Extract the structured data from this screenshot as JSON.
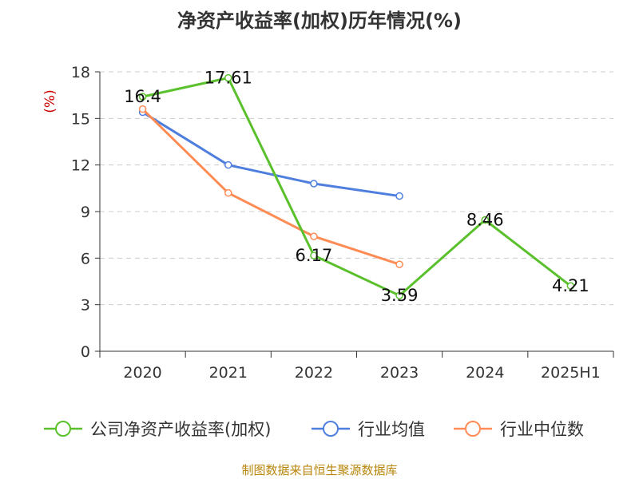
{
  "title": "净资产收益率(加权)历年情况(%)",
  "source": "制图数据来自恒生聚源数据库",
  "chart_data": {
    "type": "line",
    "title": "净资产收益率(加权)历年情况(%)",
    "ylabel": "(%)",
    "xlabel": "",
    "categories": [
      "2020",
      "2021",
      "2022",
      "2023",
      "2024",
      "2025H1"
    ],
    "ylim": [
      0,
      18
    ],
    "yticks": [
      0,
      3,
      6,
      9,
      12,
      15,
      18
    ],
    "grid": true,
    "legend_position": "bottom",
    "series": [
      {
        "name": "公司净资产收益率(加权)",
        "color": "#5ac02c",
        "values": [
          16.4,
          17.61,
          6.17,
          3.59,
          8.46,
          4.21
        ],
        "labels": [
          "16.4",
          "17.61",
          "6.17",
          "3.59",
          "8.46",
          "4.21"
        ]
      },
      {
        "name": "行业均值",
        "color": "#4f7fde",
        "values": [
          15.4,
          12.0,
          10.8,
          10.0,
          null,
          null
        ]
      },
      {
        "name": "行业中位数",
        "color": "#ff8c55",
        "values": [
          15.6,
          10.2,
          7.4,
          5.6,
          null,
          null
        ]
      }
    ]
  }
}
